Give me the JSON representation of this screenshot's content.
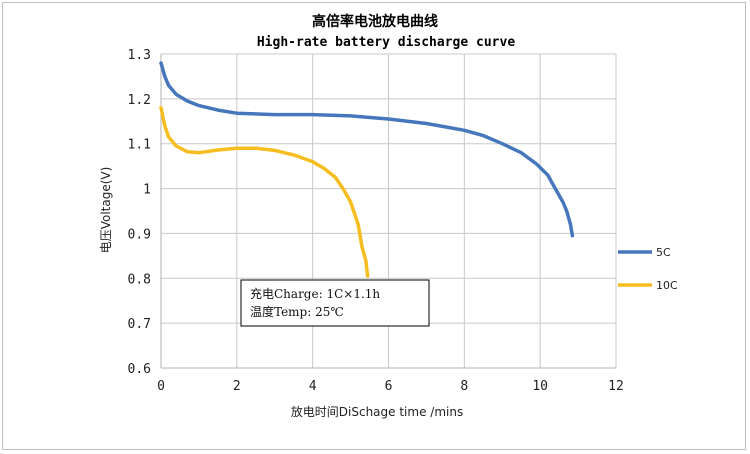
{
  "chart_data": {
    "type": "line",
    "title": "高倍率电池放电曲线",
    "subtitle": "High-rate battery discharge curve",
    "xlabel": "放电时间DiSchage time /mins",
    "ylabel": "电压Voltage(V)",
    "xlim": [
      0,
      12
    ],
    "ylim": [
      0.6,
      1.3
    ],
    "xticks": [
      "0",
      "2",
      "4",
      "6",
      "8",
      "10",
      "12"
    ],
    "yticks": [
      "0.6",
      "0.7",
      "0.8",
      "0.9",
      "1",
      "1.1",
      "1.2",
      "1.3"
    ],
    "grid": true,
    "legend_position": "right",
    "series": [
      {
        "name": "5C",
        "color": "#4677bc",
        "x": [
          0,
          0.1,
          0.2,
          0.4,
          0.7,
          1.0,
          1.5,
          2.0,
          3.0,
          4.0,
          5.0,
          6.0,
          7.0,
          8.0,
          8.5,
          9.0,
          9.5,
          9.9,
          10.2,
          10.4,
          10.6,
          10.7,
          10.8,
          10.85
        ],
        "y": [
          1.28,
          1.25,
          1.23,
          1.21,
          1.195,
          1.185,
          1.175,
          1.168,
          1.165,
          1.165,
          1.162,
          1.155,
          1.145,
          1.13,
          1.118,
          1.1,
          1.08,
          1.055,
          1.03,
          1.0,
          0.97,
          0.95,
          0.92,
          0.895
        ]
      },
      {
        "name": "10C",
        "color": "#f5bd1f",
        "x": [
          0,
          0.05,
          0.1,
          0.2,
          0.4,
          0.7,
          1.0,
          1.5,
          2.0,
          2.5,
          3.0,
          3.5,
          4.0,
          4.3,
          4.6,
          4.8,
          5.0,
          5.1,
          5.2,
          5.3,
          5.4,
          5.45
        ],
        "y": [
          1.18,
          1.16,
          1.14,
          1.115,
          1.095,
          1.082,
          1.08,
          1.086,
          1.09,
          1.09,
          1.085,
          1.075,
          1.06,
          1.045,
          1.025,
          1.0,
          0.97,
          0.945,
          0.92,
          0.87,
          0.84,
          0.805
        ]
      }
    ],
    "annotation": {
      "line1": "充电Charge: 1C×1.1h",
      "line2": "温度Temp: 25℃"
    }
  }
}
